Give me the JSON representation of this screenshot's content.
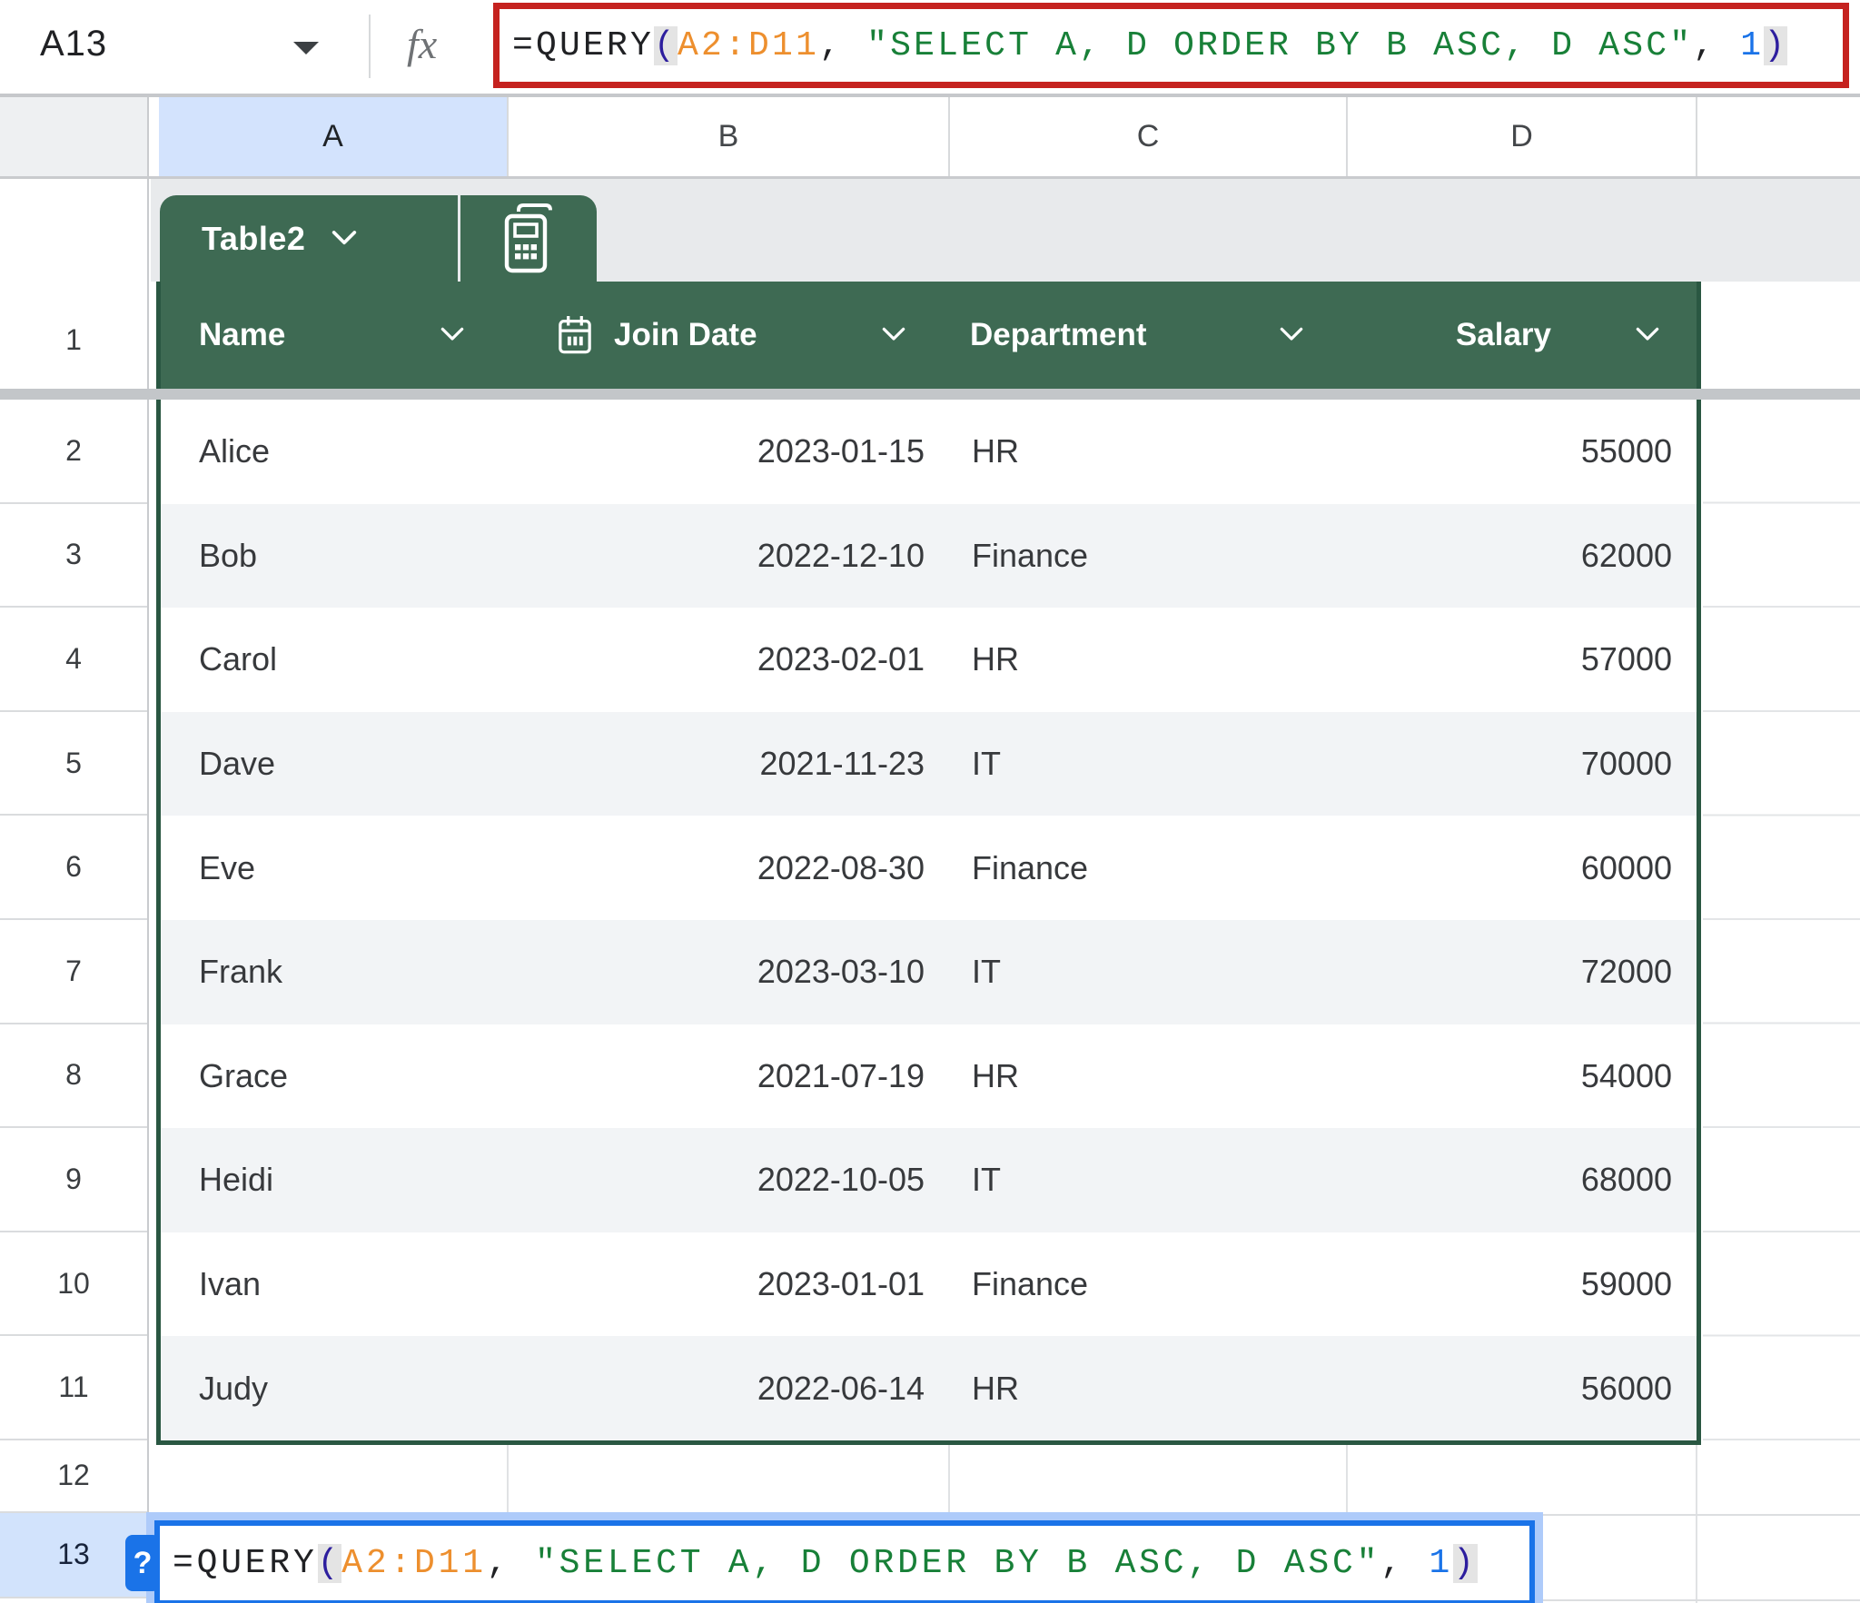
{
  "formula_bar": {
    "cell_reference": "A13",
    "fx_label": "fx"
  },
  "formula": {
    "tokens": [
      {
        "text": "=QUERY",
        "type": "function"
      },
      {
        "text": "(",
        "type": "paren"
      },
      {
        "text": "A2:D11",
        "type": "range"
      },
      {
        "text": ", ",
        "type": "plain"
      },
      {
        "text": "\"SELECT A, D ORDER BY B ASC, D ASC\"",
        "type": "string"
      },
      {
        "text": ", ",
        "type": "plain"
      },
      {
        "text": "1",
        "type": "number"
      },
      {
        "text": ")",
        "type": "paren"
      }
    ]
  },
  "column_strip": {
    "columns": [
      "A",
      "B",
      "C",
      "D"
    ]
  },
  "row_gutter": {
    "numbers": [
      "1",
      "2",
      "3",
      "4",
      "5",
      "6",
      "7",
      "8",
      "9",
      "10",
      "11",
      "12",
      "13"
    ]
  },
  "table_chip": {
    "name": "Table2"
  },
  "table": {
    "headers": [
      {
        "label": "Name"
      },
      {
        "label": "Join Date",
        "icon": "calendar"
      },
      {
        "label": "Department"
      },
      {
        "label": "Salary"
      }
    ],
    "rows": [
      {
        "name": "Alice",
        "join_date": "2023-01-15",
        "department": "HR",
        "salary": "55000"
      },
      {
        "name": "Bob",
        "join_date": "2022-12-10",
        "department": "Finance",
        "salary": "62000"
      },
      {
        "name": "Carol",
        "join_date": "2023-02-01",
        "department": "HR",
        "salary": "57000"
      },
      {
        "name": "Dave",
        "join_date": "2021-11-23",
        "department": "IT",
        "salary": "70000"
      },
      {
        "name": "Eve",
        "join_date": "2022-08-30",
        "department": "Finance",
        "salary": "60000"
      },
      {
        "name": "Frank",
        "join_date": "2023-03-10",
        "department": "IT",
        "salary": "72000"
      },
      {
        "name": "Grace",
        "join_date": "2021-07-19",
        "department": "HR",
        "salary": "54000"
      },
      {
        "name": "Heidi",
        "join_date": "2022-10-05",
        "department": "IT",
        "salary": "68000"
      },
      {
        "name": "Ivan",
        "join_date": "2023-01-01",
        "department": "Finance",
        "salary": "59000"
      },
      {
        "name": "Judy",
        "join_date": "2022-06-14",
        "department": "HR",
        "salary": "56000"
      }
    ]
  },
  "edit_cell": {
    "row": "13",
    "help_badge": "?"
  },
  "colors": {
    "header_green": "#3E6A53",
    "table_border_green": "#2A5742",
    "highlight_red": "#C5221F",
    "selection_blue": "#1A73E8",
    "selection_glow": "#AECBFA",
    "selected_header_blue": "#D3E3FD",
    "banding_grey": "#F2F4F6",
    "token_range_orange": "#ED8F2E",
    "token_string_green": "#188038",
    "token_number_blue": "#1A73E8",
    "token_paren_purple": "#2D1E9E"
  }
}
